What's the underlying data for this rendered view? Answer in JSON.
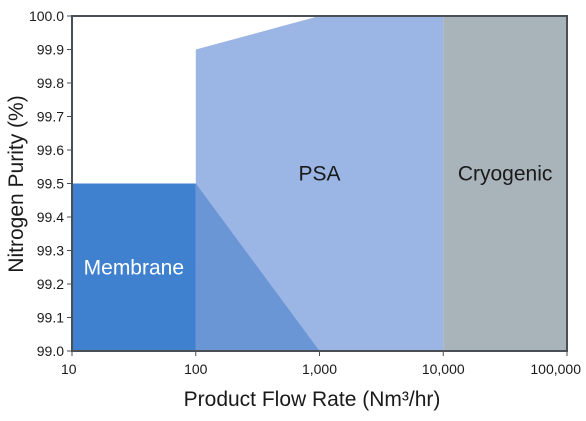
{
  "chart_data": {
    "type": "area",
    "xlabel": "Product Flow Rate (Nm³/hr)",
    "ylabel": "Nitrogen Purity (%)",
    "x_scale": "log",
    "xlim": [
      10,
      100000
    ],
    "ylim": [
      99.0,
      100.0
    ],
    "x_ticks": [
      {
        "value": 10,
        "label": "10"
      },
      {
        "value": 100,
        "label": "100"
      },
      {
        "value": 1000,
        "label": "1,000"
      },
      {
        "value": 10000,
        "label": "10,000"
      },
      {
        "value": 100000,
        "label": "100,000"
      }
    ],
    "y_ticks": [
      {
        "value": 99.0,
        "label": "99.0"
      },
      {
        "value": 99.1,
        "label": "99.1"
      },
      {
        "value": 99.2,
        "label": "99.2"
      },
      {
        "value": 99.3,
        "label": "99.3"
      },
      {
        "value": 99.4,
        "label": "99.4"
      },
      {
        "value": 99.5,
        "label": "99.5"
      },
      {
        "value": 99.6,
        "label": "99.6"
      },
      {
        "value": 99.7,
        "label": "99.7"
      },
      {
        "value": 99.8,
        "label": "99.8"
      },
      {
        "value": 99.9,
        "label": "99.9"
      },
      {
        "value": 100.0,
        "label": "100.0"
      }
    ],
    "grid": false,
    "regions": [
      {
        "key": "psa",
        "name": "PSA",
        "color": "#9bb5e4",
        "polygon": [
          [
            100,
            99.0
          ],
          [
            100,
            99.9
          ],
          [
            1000,
            100.0
          ],
          [
            10000,
            100.0
          ],
          [
            10000,
            99.0
          ]
        ],
        "label_at": [
          1000,
          99.53
        ]
      },
      {
        "key": "overlap",
        "name": "",
        "color": "#6a96d6",
        "polygon": [
          [
            100,
            99.0
          ],
          [
            100,
            99.5
          ],
          [
            1000,
            99.0
          ]
        ],
        "label_at": null
      },
      {
        "key": "membrane",
        "name": "Membrane",
        "color": "#3f80cf",
        "polygon": [
          [
            10,
            99.0
          ],
          [
            10,
            99.5
          ],
          [
            100,
            99.5
          ],
          [
            100,
            99.0
          ]
        ],
        "label_at": [
          31.6,
          99.25
        ]
      },
      {
        "key": "cryogenic",
        "name": "Cryogenic",
        "color": "#a9b3ba",
        "polygon": [
          [
            10000,
            99.0
          ],
          [
            10000,
            100.0
          ],
          [
            100000,
            100.0
          ],
          [
            100000,
            99.0
          ]
        ],
        "label_at": [
          31623,
          99.53
        ]
      }
    ]
  },
  "colors": {
    "axis": "#4a4f55",
    "membrane_label": "#ffffff",
    "psa_label": "#1a1a1a",
    "cryogenic_label": "#1a1a1a"
  }
}
